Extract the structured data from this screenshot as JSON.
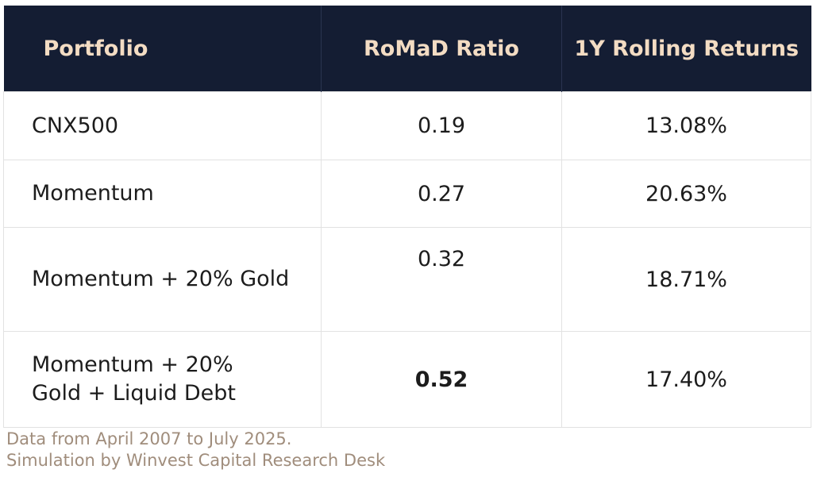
{
  "table": {
    "headers": [
      "Portfolio",
      "RoMaD Ratio",
      "1Y Rolling Returns"
    ],
    "rows": [
      {
        "portfolio_line1": "CNX500",
        "portfolio_line2": "",
        "romad": "0.19",
        "returns": "13.08%"
      },
      {
        "portfolio_line1": "Momentum",
        "portfolio_line2": "",
        "romad": "0.27",
        "returns": "20.63%"
      },
      {
        "portfolio_line1": "Momentum + 20% Gold",
        "portfolio_line2": "",
        "romad": "0.32",
        "returns": "18.71%"
      },
      {
        "portfolio_line1": "Momentum + 20%",
        "portfolio_line2": "Gold + Liquid Debt",
        "romad": "0.52",
        "returns": "17.40%"
      }
    ]
  },
  "footnote": {
    "line1": "Data from April 2007 to July 2025.",
    "line2": "Simulation by Winvest Capital Research Desk"
  },
  "colors": {
    "header_bg": "#141d33",
    "header_text": "#f3dcc3",
    "footnote_text": "#a08d7c"
  }
}
